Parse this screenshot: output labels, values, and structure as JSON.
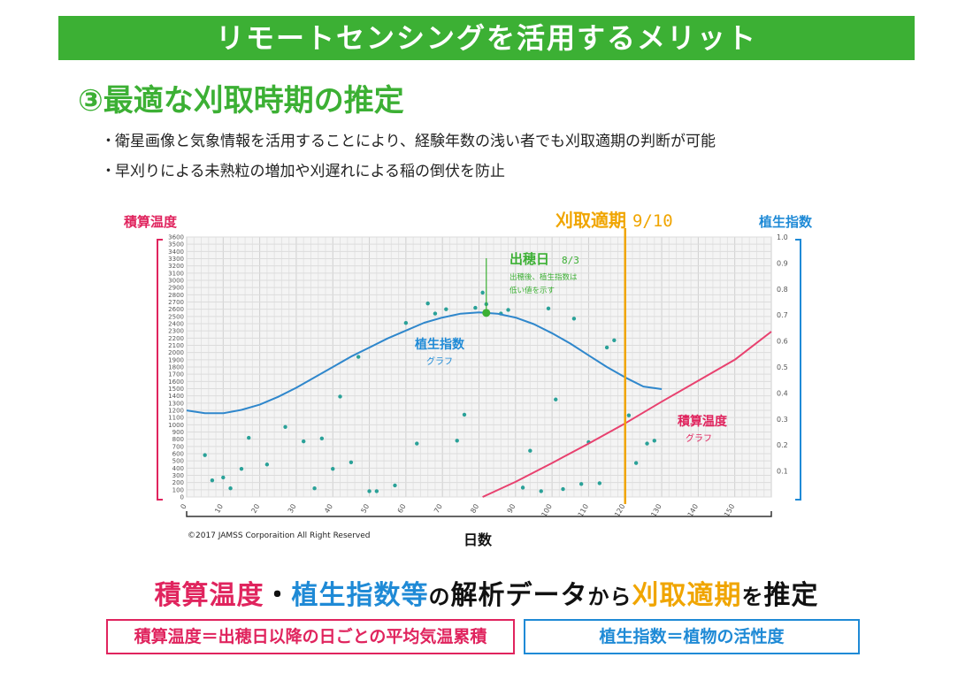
{
  "banner": {
    "title": "リモートセンシングを活用するメリット"
  },
  "section": {
    "title": "③最適な刈取時期の推定"
  },
  "bullets": [
    "衛星画像と気象情報を活用することにより、経験年数の浅い者でも刈取適期の判断が可能",
    "早刈りによる未熟粒の増加や刈遅れによる稲の倒伏を防止"
  ],
  "bullet_marker": "・",
  "colors": {
    "green": "#3cb034",
    "pink": "#e0245e",
    "blue": "#1f8ad6",
    "orange": "#f0a500",
    "teal": "#2aa198",
    "gdd_line": "#e8416f",
    "ndvi_line": "#2f87cc"
  },
  "chart_data": {
    "type": "line",
    "left_axis_title": "積算温度",
    "right_axis_title": "植生指数",
    "x_axis_title": "日数",
    "xlim": [
      0,
      160
    ],
    "x_ticks": [
      0,
      10,
      20,
      30,
      40,
      50,
      60,
      70,
      80,
      90,
      100,
      110,
      120,
      130,
      140,
      150
    ],
    "ylim_left": [
      0,
      3600
    ],
    "y_ticks_left": [
      0,
      100,
      200,
      300,
      400,
      500,
      600,
      700,
      800,
      900,
      1000,
      1100,
      1200,
      1300,
      1400,
      1500,
      1600,
      1700,
      1800,
      1900,
      2000,
      2100,
      2200,
      2300,
      2400,
      2500,
      2600,
      2700,
      2800,
      2900,
      3000,
      3100,
      3200,
      3300,
      3400,
      3500,
      3600
    ],
    "ylim_right": [
      0,
      1.0
    ],
    "y_ticks_right": [
      "",
      "0.1",
      "0.2",
      "0.3",
      "0.4",
      "0.5",
      "0.6",
      "0.7",
      "0.8",
      "0.9",
      "1.0"
    ],
    "grid": true,
    "series": [
      {
        "key": "ndvi",
        "axis": "right",
        "label_main": "植生指数",
        "label_sub": "グラフ",
        "x": [
          0,
          5,
          10,
          15,
          20,
          25,
          30,
          35,
          40,
          45,
          50,
          55,
          60,
          65,
          70,
          75,
          80,
          85,
          90,
          95,
          100,
          105,
          110,
          115,
          120,
          125,
          130
        ],
        "values": [
          0.333,
          0.322,
          0.322,
          0.335,
          0.355,
          0.385,
          0.42,
          0.46,
          0.5,
          0.54,
          0.575,
          0.61,
          0.64,
          0.67,
          0.69,
          0.705,
          0.71,
          0.705,
          0.69,
          0.665,
          0.63,
          0.59,
          0.545,
          0.5,
          0.46,
          0.425,
          0.415
        ]
      },
      {
        "key": "gdd",
        "axis": "left",
        "label_main": "積算温度",
        "label_sub": "グラフ",
        "x": [
          81,
          90,
          100,
          110,
          120,
          130,
          140,
          150,
          160
        ],
        "values": [
          0,
          210,
          470,
          740,
          1020,
          1320,
          1610,
          1900,
          2290
        ]
      }
    ],
    "scatter": {
      "axis": "left",
      "points": [
        [
          5,
          580
        ],
        [
          7,
          230
        ],
        [
          10,
          270
        ],
        [
          12,
          120
        ],
        [
          15,
          390
        ],
        [
          17,
          820
        ],
        [
          22,
          450
        ],
        [
          27,
          970
        ],
        [
          32,
          770
        ],
        [
          35,
          120
        ],
        [
          37,
          810
        ],
        [
          40,
          390
        ],
        [
          42,
          1390
        ],
        [
          45,
          480
        ],
        [
          47,
          1940
        ],
        [
          50,
          80
        ],
        [
          52,
          80
        ],
        [
          57,
          160
        ],
        [
          60,
          2410
        ],
        [
          63,
          740
        ],
        [
          66,
          2680
        ],
        [
          68,
          2540
        ],
        [
          71,
          2600
        ],
        [
          74,
          780
        ],
        [
          76,
          1140
        ],
        [
          79,
          2620
        ],
        [
          81,
          2830
        ],
        [
          82,
          2670
        ],
        [
          86,
          2540
        ],
        [
          88,
          2590
        ],
        [
          92,
          130
        ],
        [
          94,
          640
        ],
        [
          97,
          80
        ],
        [
          99,
          2610
        ],
        [
          101,
          1350
        ],
        [
          103,
          110
        ],
        [
          106,
          2470
        ],
        [
          108,
          180
        ],
        [
          110,
          760
        ],
        [
          113,
          190
        ],
        [
          115,
          2070
        ],
        [
          117,
          2170
        ],
        [
          121,
          1130
        ],
        [
          123,
          470
        ],
        [
          126,
          740
        ],
        [
          128,
          780
        ]
      ]
    },
    "annotations": {
      "heading_date_label": "出穂日",
      "heading_date_value": "8/3",
      "heading_note_1": "出穂後、植生指数は",
      "heading_note_2": "低い値を示す",
      "harvest_label": "刈取適期",
      "harvest_date": "9/10",
      "heading_day": 82,
      "harvest_day": 120
    }
  },
  "footer": {
    "copyright": "©2017 JAMSS Corporaition All Right Reserved"
  },
  "summary": {
    "part1": "積算温度",
    "dot": "・",
    "part2": "植生指数等",
    "part3": "の",
    "part4": "解析データ",
    "part5": "から",
    "part6": "刈取適期",
    "part7": "を",
    "part8": "推定"
  },
  "definitions": {
    "gdd": "積算温度＝出穂日以降の日ごとの平均気温累積",
    "ndvi": "植生指数＝植物の活性度"
  }
}
